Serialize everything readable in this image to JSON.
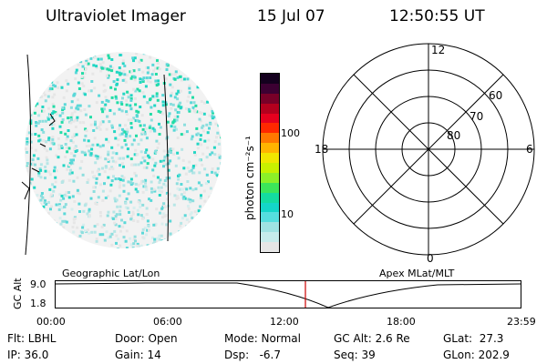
{
  "header": {
    "title": "Ultraviolet Imager",
    "date": "15 Jul 07",
    "time": "12:50:55 UT"
  },
  "colorbar": {
    "label": "photon cm⁻²s⁻¹",
    "ticks": [
      "100",
      "10"
    ],
    "colors": [
      "#e6e6e6",
      "#c6ecec",
      "#9fe3e3",
      "#55dede",
      "#14d6c8",
      "#14dca0",
      "#3ce65a",
      "#8cf028",
      "#c8f000",
      "#f0e600",
      "#ffb400",
      "#ff7800",
      "#ff2800",
      "#e6001e",
      "#b4001e",
      "#780028",
      "#3c0032",
      "#14001e"
    ]
  },
  "polar": {
    "mlt_labels": [
      "12",
      "6",
      "0",
      "18"
    ],
    "lat_labels": [
      "60",
      "70",
      "80"
    ]
  },
  "timeline": {
    "left_label": "Geographic Lat/Lon",
    "right_label": "Apex MLat/MLT",
    "y_axis_label": "GC Alt",
    "y_ticks": [
      "9.0",
      "1.8"
    ],
    "x_ticks": [
      "00:00",
      "06:00",
      "12:00",
      "18:00",
      "23:59"
    ],
    "marker_color": "#cc0000"
  },
  "footer": {
    "flt": "Flt: LBHL",
    "ip": "IP: 36.0",
    "door": "Door: Open",
    "gain": "Gain: 14",
    "mode": "Mode: Normal",
    "dsp": "Dsp:   -6.7",
    "gcalt": "GC Alt: 2.6 Re",
    "seq": "Seq: 39",
    "glat": "GLat:  27.3",
    "glon": "GLon: 202.9"
  }
}
